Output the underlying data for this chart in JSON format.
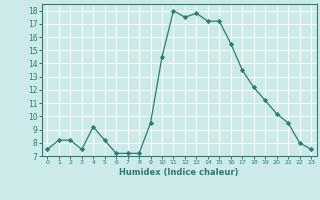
{
  "x": [
    0,
    1,
    2,
    3,
    4,
    5,
    6,
    7,
    8,
    9,
    10,
    11,
    12,
    13,
    14,
    15,
    16,
    17,
    18,
    19,
    20,
    21,
    22,
    23
  ],
  "y": [
    7.5,
    8.2,
    8.2,
    7.5,
    9.2,
    8.2,
    7.2,
    7.2,
    7.2,
    9.5,
    14.5,
    18.0,
    17.5,
    17.8,
    17.2,
    17.2,
    15.5,
    13.5,
    12.2,
    11.2,
    10.2,
    9.5,
    8.0,
    7.5
  ],
  "line_color": "#2a7d6f",
  "marker": "D",
  "marker_size": 2.2,
  "bg_color": "#cceaea",
  "grid_color": "#ffffff",
  "xlabel": "Humidex (Indice chaleur)",
  "xlim": [
    -0.5,
    23.5
  ],
  "ylim": [
    7,
    18.5
  ],
  "yticks": [
    7,
    8,
    9,
    10,
    11,
    12,
    13,
    14,
    15,
    16,
    17,
    18
  ],
  "xticks": [
    0,
    1,
    2,
    3,
    4,
    5,
    6,
    7,
    8,
    9,
    10,
    11,
    12,
    13,
    14,
    15,
    16,
    17,
    18,
    19,
    20,
    21,
    22,
    23
  ],
  "font_color": "#2a7d6f",
  "spine_color": "#2a7d6f"
}
